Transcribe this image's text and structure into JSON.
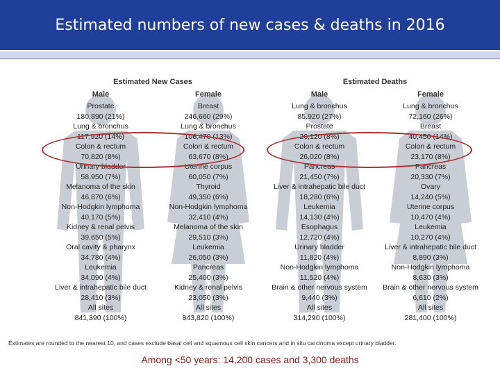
{
  "title": "Estimated numbers of new cases & deaths in 2016",
  "panels": [
    {
      "title": "Estimated New Cases",
      "columns": [
        {
          "header": "Male",
          "rows": [
            {
              "site": "Prostate",
              "value": "180,890 (21%)"
            },
            {
              "site": "Lung & bronchus",
              "value": "117,920 (14%)"
            },
            {
              "site": "Colon & rectum",
              "value": "70,820 (8%)"
            },
            {
              "site": "Urinary bladder",
              "value": "58,950 (7%)"
            },
            {
              "site": "Melanoma of the skin",
              "value": "46,870 (6%)"
            },
            {
              "site": "Non-Hodgkin lymphoma",
              "value": "40,170 (5%)"
            },
            {
              "site": "Kidney & renal pelvis",
              "value": "39,650 (5%)"
            },
            {
              "site": "Oral cavity & pharynx",
              "value": "34,780 (4%)"
            },
            {
              "site": "Leukemia",
              "value": "34,090 (4%)"
            },
            {
              "site": "Liver & intrahepatic bile duct",
              "value": "28,410 (3%)"
            },
            {
              "site": "All sites",
              "value": "841,390 (100%)"
            }
          ]
        },
        {
          "header": "Female",
          "rows": [
            {
              "site": "Breast",
              "value": "246,660 (29%)"
            },
            {
              "site": "Lung & bronchus",
              "value": "106,470 (13%)"
            },
            {
              "site": "Colon & rectum",
              "value": "63,670 (8%)"
            },
            {
              "site": "Uterine corpus",
              "value": "60,050 (7%)"
            },
            {
              "site": "Thyroid",
              "value": "49,350 (6%)"
            },
            {
              "site": "Non-Hodgkin lymphoma",
              "value": "32,410 (4%)"
            },
            {
              "site": "Melanoma of the skin",
              "value": "29,510 (3%)"
            },
            {
              "site": "Leukemia",
              "value": "26,050 (3%)"
            },
            {
              "site": "Pancreas",
              "value": "25,400 (3%)"
            },
            {
              "site": "Kidney & renal pelvis",
              "value": "23,050 (3%)"
            },
            {
              "site": "All sites",
              "value": "843,820 (100%)"
            }
          ]
        }
      ]
    },
    {
      "title": "Estimated Deaths",
      "columns": [
        {
          "header": "Male",
          "rows": [
            {
              "site": "Lung & bronchus",
              "value": "85,920 (27%)"
            },
            {
              "site": "Prostate",
              "value": "26,120 (8%)"
            },
            {
              "site": "Colon & rectum",
              "value": "26,020 (8%)"
            },
            {
              "site": "Pancreas",
              "value": "21,450 (7%)"
            },
            {
              "site": "Liver & intrahepatic bile duct",
              "value": "18,280 (6%)"
            },
            {
              "site": "Leukemia",
              "value": "14,130 (4%)"
            },
            {
              "site": "Esophagus",
              "value": "12,720 (4%)"
            },
            {
              "site": "Urinary bladder",
              "value": "11,820 (4%)"
            },
            {
              "site": "Non-Hodgkin lymphoma",
              "value": "11,520 (4%)"
            },
            {
              "site": "Brain & other nervous system",
              "value": "9,440 (3%)"
            },
            {
              "site": "All sites",
              "value": "314,290 (100%)"
            }
          ]
        },
        {
          "header": "Female",
          "rows": [
            {
              "site": "Lung & bronchus",
              "value": "72,160 (26%)"
            },
            {
              "site": "Breast",
              "value": "40,450 (14%)"
            },
            {
              "site": "Colon & rectum",
              "value": "23,170 (8%)"
            },
            {
              "site": "Pancreas",
              "value": "20,330 (7%)"
            },
            {
              "site": "Ovary",
              "value": "14,240 (5%)"
            },
            {
              "site": "Uterine corpus",
              "value": "10,470 (4%)"
            },
            {
              "site": "Leukemia",
              "value": "10,270 (4%)"
            },
            {
              "site": "Liver & intrahepatic bile duct",
              "value": "8,890 (3%)"
            },
            {
              "site": "Non-Hodgkin lymphoma",
              "value": "8,630 (3%)"
            },
            {
              "site": "Brain & other nervous system",
              "value": "6,610 (2%)"
            },
            {
              "site": "All sites",
              "value": "281,400 (100%)"
            }
          ]
        }
      ]
    }
  ],
  "footnote": "Estimates are rounded to the nearest 10, and cases exclude basal cell and squamous cell skin cancers and in situ carcinoma except urinary bladder.",
  "note": "Among <50 years: 14,200 cases and 3,300 deaths",
  "colors": {
    "banner": "#1f3f9a",
    "silhouette": "#c9ced6",
    "highlight": "#b03030",
    "note": "#8b1a1a"
  }
}
